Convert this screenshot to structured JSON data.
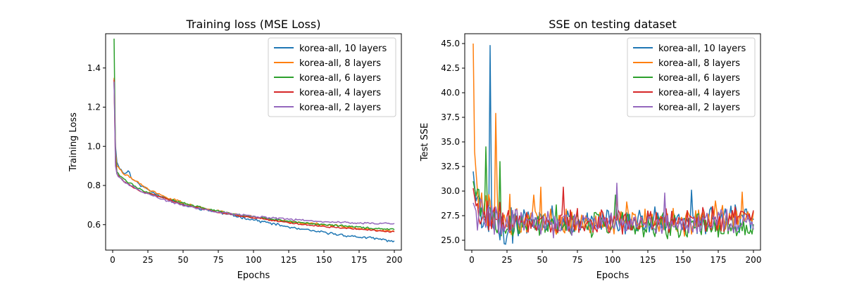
{
  "chart_data": [
    {
      "type": "line",
      "title": "Training loss (MSE Loss)",
      "xlabel": "Epochs",
      "ylabel": "Training Loss",
      "xlim": [
        -5,
        205
      ],
      "ylim": [
        0.47,
        1.575
      ],
      "xticks": [
        0,
        25,
        50,
        75,
        100,
        125,
        150,
        175,
        200
      ],
      "yticks": [
        0.6,
        0.8,
        1.0,
        1.2,
        1.4
      ],
      "ytick_labels": [
        "0.6",
        "0.8",
        "1.0",
        "1.2",
        "1.4"
      ],
      "grid": false,
      "legend_position": "top-right",
      "series": [
        {
          "name": "korea-all, 10 layers",
          "color": "#1f77b4",
          "noise": 0.005,
          "seed": 11,
          "points": [
            [
              1,
              1.33
            ],
            [
              2,
              1.0
            ],
            [
              3,
              0.92
            ],
            [
              5,
              0.89
            ],
            [
              8,
              0.86
            ],
            [
              12,
              0.87
            ],
            [
              13,
              0.84
            ],
            [
              20,
              0.8
            ],
            [
              30,
              0.76
            ],
            [
              40,
              0.73
            ],
            [
              50,
              0.7
            ],
            [
              70,
              0.67
            ],
            [
              90,
              0.64
            ],
            [
              110,
              0.61
            ],
            [
              130,
              0.58
            ],
            [
              150,
              0.56
            ],
            [
              170,
              0.54
            ],
            [
              185,
              0.53
            ],
            [
              200,
              0.515
            ]
          ],
          "spikes": [
            [
              11,
              0.875
            ]
          ]
        },
        {
          "name": "korea-all, 8 layers",
          "color": "#ff7f0e",
          "noise": 0.005,
          "seed": 22,
          "points": [
            [
              1,
              1.35
            ],
            [
              2,
              0.97
            ],
            [
              3,
              0.9
            ],
            [
              5,
              0.88
            ],
            [
              8,
              0.86
            ],
            [
              15,
              0.83
            ],
            [
              25,
              0.78
            ],
            [
              35,
              0.75
            ],
            [
              50,
              0.71
            ],
            [
              70,
              0.675
            ],
            [
              90,
              0.65
            ],
            [
              110,
              0.63
            ],
            [
              130,
              0.61
            ],
            [
              150,
              0.6
            ],
            [
              170,
              0.585
            ],
            [
              185,
              0.575
            ],
            [
              200,
              0.565
            ]
          ],
          "spikes": []
        },
        {
          "name": "korea-all, 6 layers",
          "color": "#2ca02c",
          "noise": 0.004,
          "seed": 33,
          "points": [
            [
              1,
              1.55
            ],
            [
              2,
              0.95
            ],
            [
              3,
              0.87
            ],
            [
              5,
              0.85
            ],
            [
              10,
              0.82
            ],
            [
              20,
              0.78
            ],
            [
              35,
              0.74
            ],
            [
              50,
              0.71
            ],
            [
              70,
              0.675
            ],
            [
              90,
              0.65
            ],
            [
              110,
              0.63
            ],
            [
              130,
              0.615
            ],
            [
              150,
              0.6
            ],
            [
              170,
              0.59
            ],
            [
              185,
              0.58
            ],
            [
              200,
              0.575
            ]
          ],
          "spikes": []
        },
        {
          "name": "korea-all, 4 layers",
          "color": "#d62728",
          "noise": 0.003,
          "seed": 44,
          "points": [
            [
              1,
              1.34
            ],
            [
              2,
              0.92
            ],
            [
              3,
              0.86
            ],
            [
              5,
              0.84
            ],
            [
              10,
              0.81
            ],
            [
              20,
              0.77
            ],
            [
              35,
              0.74
            ],
            [
              50,
              0.7
            ],
            [
              70,
              0.67
            ],
            [
              90,
              0.645
            ],
            [
              110,
              0.625
            ],
            [
              130,
              0.605
            ],
            [
              150,
              0.59
            ],
            [
              170,
              0.58
            ],
            [
              185,
              0.57
            ],
            [
              200,
              0.562
            ]
          ],
          "spikes": []
        },
        {
          "name": "korea-all, 2 layers",
          "color": "#9467bd",
          "noise": 0.004,
          "seed": 55,
          "points": [
            [
              1,
              1.33
            ],
            [
              2,
              0.9
            ],
            [
              3,
              0.86
            ],
            [
              5,
              0.84
            ],
            [
              10,
              0.81
            ],
            [
              20,
              0.77
            ],
            [
              35,
              0.73
            ],
            [
              50,
              0.7
            ],
            [
              70,
              0.67
            ],
            [
              90,
              0.65
            ],
            [
              110,
              0.635
            ],
            [
              130,
              0.625
            ],
            [
              150,
              0.615
            ],
            [
              170,
              0.61
            ],
            [
              185,
              0.607
            ],
            [
              200,
              0.605
            ]
          ],
          "spikes": []
        }
      ]
    },
    {
      "type": "line",
      "title": "SSE on testing dataset",
      "xlabel": "Epochs",
      "ylabel": "Test SSE",
      "xlim": [
        -5,
        205
      ],
      "ylim": [
        24.0,
        46.0
      ],
      "xticks": [
        0,
        25,
        50,
        75,
        100,
        125,
        150,
        175,
        200
      ],
      "yticks": [
        25.0,
        27.5,
        30.0,
        32.5,
        35.0,
        37.5,
        40.0,
        42.5,
        45.0
      ],
      "ytick_labels": [
        "25.0",
        "27.5",
        "30.0",
        "32.5",
        "35.0",
        "37.5",
        "40.0",
        "42.5",
        "45.0"
      ],
      "grid": false,
      "legend_position": "top-right",
      "series": [
        {
          "name": "korea-all, 10 layers",
          "color": "#1f77b4",
          "noise": 1.1,
          "seed": 101,
          "points": [
            [
              1,
              32.0
            ],
            [
              3,
              29.0
            ],
            [
              6,
              28.0
            ],
            [
              15,
              27.0
            ],
            [
              30,
              26.7
            ],
            [
              60,
              26.8
            ],
            [
              100,
              26.9
            ],
            [
              150,
              27.0
            ],
            [
              200,
              27.4
            ]
          ],
          "spikes": [
            [
              13,
              44.8
            ],
            [
              57,
              28.5
            ],
            [
              130,
              28.4
            ],
            [
              156,
              30.1
            ],
            [
              187,
              28.6
            ]
          ]
        },
        {
          "name": "korea-all, 8 layers",
          "color": "#ff7f0e",
          "noise": 1.1,
          "seed": 202,
          "points": [
            [
              1,
              45.0
            ],
            [
              2,
              34.0
            ],
            [
              4,
              30.0
            ],
            [
              8,
              28.5
            ],
            [
              15,
              28.0
            ],
            [
              30,
              27.2
            ],
            [
              60,
              27.0
            ],
            [
              100,
              27.0
            ],
            [
              150,
              27.0
            ],
            [
              200,
              27.2
            ]
          ],
          "spikes": [
            [
              17,
              37.9
            ],
            [
              44,
              29.6
            ],
            [
              49,
              30.4
            ],
            [
              103,
              29.3
            ],
            [
              110,
              28.9
            ],
            [
              173,
              29.0
            ],
            [
              192,
              29.9
            ]
          ]
        },
        {
          "name": "korea-all, 6 layers",
          "color": "#2ca02c",
          "noise": 1.0,
          "seed": 303,
          "points": [
            [
              1,
              31.0
            ],
            [
              3,
              29.5
            ],
            [
              8,
              28.0
            ],
            [
              20,
              27.0
            ],
            [
              40,
              26.5
            ],
            [
              80,
              26.6
            ],
            [
              120,
              26.6
            ],
            [
              160,
              26.5
            ],
            [
              200,
              26.3
            ]
          ],
          "spikes": [
            [
              10,
              34.5
            ],
            [
              20,
              33.0
            ],
            [
              60,
              28.6
            ],
            [
              102,
              29.6
            ]
          ]
        },
        {
          "name": "korea-all, 4 layers",
          "color": "#d62728",
          "noise": 1.0,
          "seed": 404,
          "points": [
            [
              1,
              30.3
            ],
            [
              3,
              28.5
            ],
            [
              8,
              27.8
            ],
            [
              20,
              27.0
            ],
            [
              40,
              26.7
            ],
            [
              80,
              26.8
            ],
            [
              120,
              26.8
            ],
            [
              160,
              26.9
            ],
            [
              200,
              27.6
            ]
          ],
          "spikes": [
            [
              65,
              30.4
            ],
            [
              171,
              28.4
            ]
          ]
        },
        {
          "name": "korea-all, 2 layers",
          "color": "#9467bd",
          "noise": 1.0,
          "seed": 505,
          "points": [
            [
              1,
              28.8
            ],
            [
              3,
              28.0
            ],
            [
              8,
              27.5
            ],
            [
              20,
              27.0
            ],
            [
              40,
              26.7
            ],
            [
              80,
              26.7
            ],
            [
              120,
              26.7
            ],
            [
              160,
              26.8
            ],
            [
              200,
              27.0
            ]
          ],
          "spikes": [
            [
              103,
              30.8
            ],
            [
              137,
              29.8
            ]
          ]
        }
      ]
    }
  ]
}
